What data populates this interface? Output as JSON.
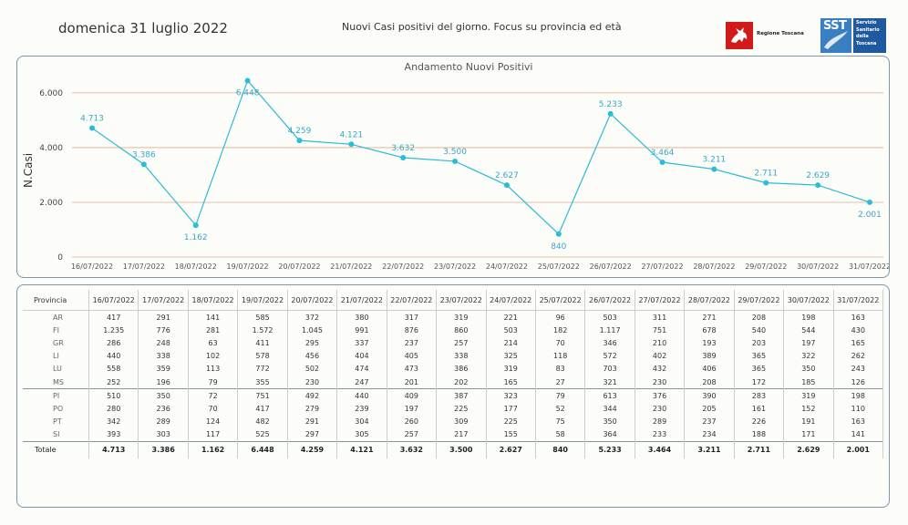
{
  "header": {
    "date": "domenica 31 luglio 2022",
    "title": "Nuovi Casi positivi del giorno. Focus su provincia ed età",
    "logo_rt": "Regione Toscana",
    "logo_sst_abbr": "SST",
    "logo_sst_lines": [
      "Servizio",
      "Sanitario",
      "della",
      "Toscana"
    ]
  },
  "colors": {
    "line": "#2bbcd6",
    "label": "#3aa6c9",
    "grid": "#e0ae8a",
    "border": "#7c97a8"
  },
  "chart_data": {
    "type": "line",
    "title": "Andamento Nuovi Positivi",
    "ylabel": "N.Casi",
    "xlabel": "",
    "ylim": [
      0,
      7000
    ],
    "yticks": [
      0,
      2000,
      4000,
      6000
    ],
    "ytick_labels": [
      "0",
      "2.000",
      "4.000",
      "6.000"
    ],
    "categories": [
      "16/07/2022",
      "17/07/2022",
      "18/07/2022",
      "19/07/2022",
      "20/07/2022",
      "21/07/2022",
      "22/07/2022",
      "23/07/2022",
      "24/07/2022",
      "25/07/2022",
      "26/07/2022",
      "27/07/2022",
      "28/07/2022",
      "29/07/2022",
      "30/07/2022",
      "31/07/2022"
    ],
    "values": [
      4713,
      3386,
      1162,
      6448,
      4259,
      4121,
      3632,
      3500,
      2627,
      840,
      5233,
      3464,
      3211,
      2711,
      2629,
      2001
    ],
    "value_labels": [
      "4.713",
      "3.386",
      "1.162",
      "6.448",
      "4.259",
      "4.121",
      "3.632",
      "3.500",
      "2.627",
      "840",
      "5.233",
      "3.464",
      "3.211",
      "2.711",
      "2.629",
      "2.001"
    ],
    "label_positions": [
      "above",
      "above",
      "below",
      "below",
      "above",
      "above",
      "above",
      "above",
      "above",
      "below",
      "above",
      "above",
      "above",
      "above",
      "above",
      "below"
    ],
    "grid": true
  },
  "table": {
    "header_label": "Provincia",
    "dates": [
      "16/07/2022",
      "17/07/2022",
      "18/07/2022",
      "19/07/2022",
      "20/07/2022",
      "21/07/2022",
      "22/07/2022",
      "23/07/2022",
      "24/07/2022",
      "25/07/2022",
      "26/07/2022",
      "27/07/2022",
      "28/07/2022",
      "29/07/2022",
      "30/07/2022",
      "31/07/2022"
    ],
    "rows": [
      {
        "prov": "AR",
        "values": [
          "417",
          "291",
          "141",
          "585",
          "372",
          "380",
          "317",
          "319",
          "221",
          "96",
          "503",
          "311",
          "271",
          "208",
          "198",
          "163"
        ]
      },
      {
        "prov": "FI",
        "values": [
          "1.235",
          "776",
          "281",
          "1.572",
          "1.045",
          "991",
          "876",
          "860",
          "503",
          "182",
          "1.117",
          "751",
          "678",
          "540",
          "544",
          "430"
        ]
      },
      {
        "prov": "GR",
        "values": [
          "286",
          "248",
          "63",
          "411",
          "295",
          "337",
          "237",
          "257",
          "214",
          "70",
          "346",
          "210",
          "193",
          "203",
          "197",
          "165"
        ]
      },
      {
        "prov": "LI",
        "values": [
          "440",
          "338",
          "102",
          "578",
          "456",
          "404",
          "405",
          "338",
          "325",
          "118",
          "572",
          "402",
          "389",
          "365",
          "322",
          "262"
        ]
      },
      {
        "prov": "LU",
        "values": [
          "558",
          "359",
          "113",
          "772",
          "502",
          "474",
          "473",
          "386",
          "319",
          "83",
          "703",
          "432",
          "406",
          "365",
          "350",
          "243"
        ]
      },
      {
        "prov": "MS",
        "values": [
          "252",
          "196",
          "79",
          "355",
          "230",
          "247",
          "201",
          "202",
          "165",
          "27",
          "321",
          "230",
          "208",
          "172",
          "185",
          "126"
        ]
      },
      {
        "prov": "PI",
        "values": [
          "510",
          "350",
          "72",
          "751",
          "492",
          "440",
          "409",
          "387",
          "323",
          "79",
          "613",
          "376",
          "390",
          "283",
          "319",
          "198"
        ]
      },
      {
        "prov": "PO",
        "values": [
          "280",
          "236",
          "70",
          "417",
          "279",
          "239",
          "197",
          "225",
          "177",
          "52",
          "344",
          "230",
          "205",
          "161",
          "152",
          "110"
        ]
      },
      {
        "prov": "PT",
        "values": [
          "342",
          "289",
          "124",
          "482",
          "291",
          "304",
          "260",
          "309",
          "225",
          "75",
          "350",
          "289",
          "237",
          "226",
          "191",
          "163"
        ]
      },
      {
        "prov": "SI",
        "values": [
          "393",
          "303",
          "117",
          "525",
          "297",
          "305",
          "257",
          "217",
          "155",
          "58",
          "364",
          "233",
          "234",
          "188",
          "171",
          "141"
        ]
      }
    ],
    "total": {
      "prov": "Totale",
      "values": [
        "4.713",
        "3.386",
        "1.162",
        "6.448",
        "4.259",
        "4.121",
        "3.632",
        "3.500",
        "2.627",
        "840",
        "5.233",
        "3.464",
        "3.211",
        "2.711",
        "2.629",
        "2.001"
      ]
    }
  }
}
